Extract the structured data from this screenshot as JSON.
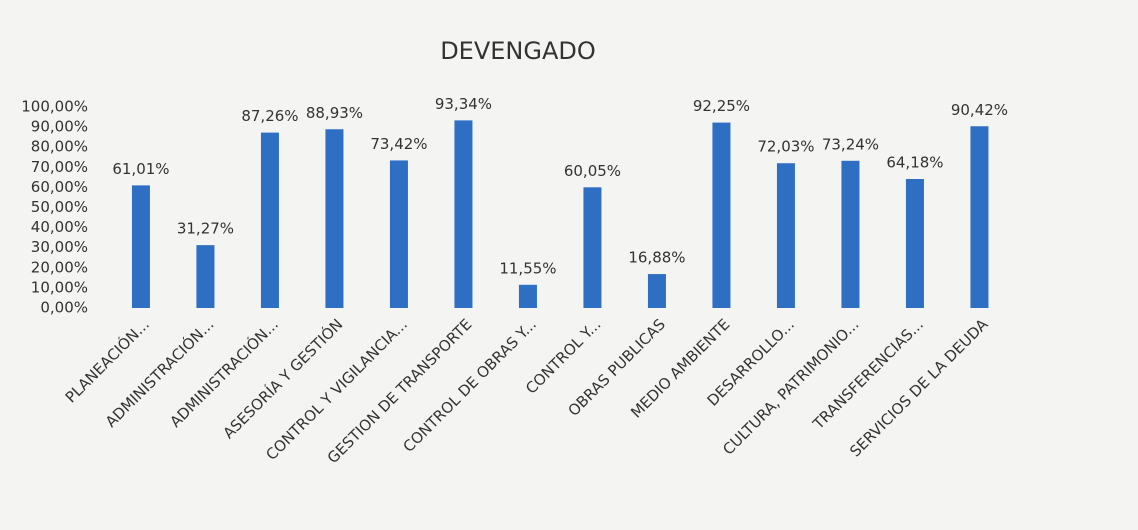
{
  "chart_data": {
    "type": "bar",
    "title": "DEVENGADO",
    "categories": [
      "PLANEACIÓN...",
      "ADMINISTRACIÓN...",
      "ADMINISTRACIÓN...",
      "ASESORÍA Y GESTIÓN",
      "CONTROL Y VIGILANCIA...",
      "GESTION DE TRANSPORTE",
      "CONTROL DE OBRAS Y...",
      "CONTROL Y...",
      "OBRAS PUBLICAS",
      "MEDIO AMBIENTE",
      "DESARROLLO...",
      "CULTURA, PATRIMONIO...",
      "TRANSFERENCIAS...",
      "SERVICIOS DE LA DEUDA"
    ],
    "values": [
      61.01,
      31.27,
      87.26,
      88.93,
      73.42,
      93.34,
      11.55,
      60.05,
      16.88,
      92.25,
      72.03,
      73.24,
      64.18,
      90.42
    ],
    "value_labels": [
      "61,01%",
      "31,27%",
      "87,26%",
      "88,93%",
      "73,42%",
      "93,34%",
      "11,55%",
      "60,05%",
      "16,88%",
      "92,25%",
      "72,03%",
      "73,24%",
      "64,18%",
      "90,42%"
    ],
    "color": "#2e6fc4",
    "ylim": [
      0,
      100
    ],
    "yticks": [
      {
        "value": 0,
        "label": "0,00%"
      },
      {
        "value": 10,
        "label": "10,00%"
      },
      {
        "value": 20,
        "label": "20,00%"
      },
      {
        "value": 30,
        "label": "30,00%"
      },
      {
        "value": 40,
        "label": "40,00%"
      },
      {
        "value": 50,
        "label": "50,00%"
      },
      {
        "value": 60,
        "label": "60,00%"
      },
      {
        "value": 70,
        "label": "70,00%"
      },
      {
        "value": 80,
        "label": "80,00%"
      },
      {
        "value": 90,
        "label": "90,00%"
      },
      {
        "value": 100,
        "label": "100,00%"
      }
    ],
    "grid": false
  }
}
